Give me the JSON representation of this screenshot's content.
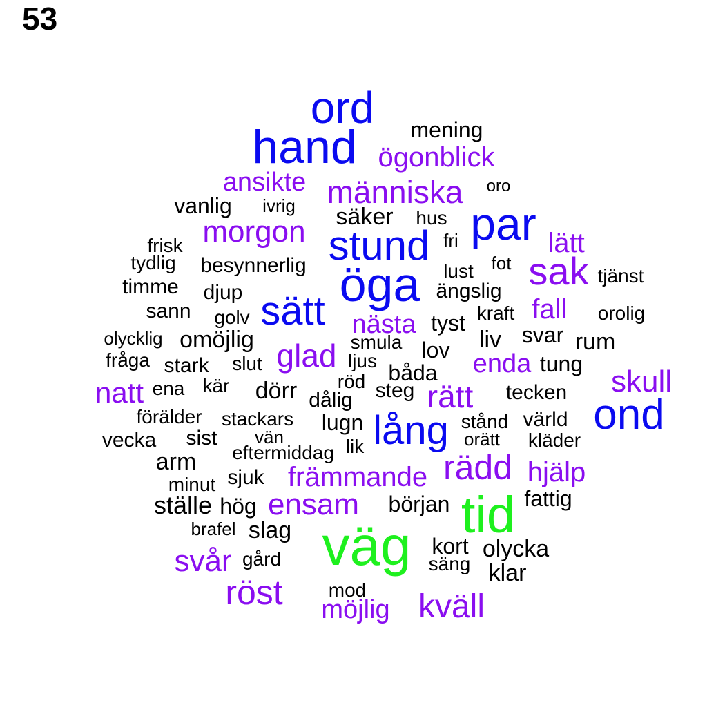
{
  "panel_label": "53",
  "colors": {
    "black": "#000000",
    "purple": "#8a0ef0",
    "blue": "#0a0af0",
    "green": "#1ef01e"
  },
  "words": [
    {
      "text": "ord",
      "color": "blue"
    },
    {
      "text": "hand",
      "color": "blue"
    },
    {
      "text": "mening",
      "color": "black"
    },
    {
      "text": "ögonblick",
      "color": "purple"
    },
    {
      "text": "ansikte",
      "color": "purple"
    },
    {
      "text": "människa",
      "color": "purple"
    },
    {
      "text": "oro",
      "color": "black"
    },
    {
      "text": "vanlig",
      "color": "black"
    },
    {
      "text": "ivrig",
      "color": "black"
    },
    {
      "text": "säker",
      "color": "black"
    },
    {
      "text": "hus",
      "color": "black"
    },
    {
      "text": "par",
      "color": "blue"
    },
    {
      "text": "morgon",
      "color": "purple"
    },
    {
      "text": "stund",
      "color": "blue"
    },
    {
      "text": "lätt",
      "color": "purple"
    },
    {
      "text": "frisk",
      "color": "black"
    },
    {
      "text": "fri",
      "color": "black"
    },
    {
      "text": "tydlig",
      "color": "black"
    },
    {
      "text": "besynnerlig",
      "color": "black"
    },
    {
      "text": "fot",
      "color": "black"
    },
    {
      "text": "sak",
      "color": "purple"
    },
    {
      "text": "lust",
      "color": "black"
    },
    {
      "text": "tjänst",
      "color": "black"
    },
    {
      "text": "öga",
      "color": "blue"
    },
    {
      "text": "timme",
      "color": "black"
    },
    {
      "text": "djup",
      "color": "black"
    },
    {
      "text": "ängslig",
      "color": "black"
    },
    {
      "text": "sätt",
      "color": "blue"
    },
    {
      "text": "fall",
      "color": "purple"
    },
    {
      "text": "sann",
      "color": "black"
    },
    {
      "text": "golv",
      "color": "black"
    },
    {
      "text": "kraft",
      "color": "black"
    },
    {
      "text": "orolig",
      "color": "black"
    },
    {
      "text": "nästa",
      "color": "purple"
    },
    {
      "text": "tyst",
      "color": "black"
    },
    {
      "text": "olycklig",
      "color": "black"
    },
    {
      "text": "omöjlig",
      "color": "black"
    },
    {
      "text": "svar",
      "color": "black"
    },
    {
      "text": "liv",
      "color": "black"
    },
    {
      "text": "rum",
      "color": "black"
    },
    {
      "text": "smula",
      "color": "black"
    },
    {
      "text": "glad",
      "color": "purple"
    },
    {
      "text": "lov",
      "color": "black"
    },
    {
      "text": "fråga",
      "color": "black"
    },
    {
      "text": "stark",
      "color": "black"
    },
    {
      "text": "slut",
      "color": "black"
    },
    {
      "text": "ljus",
      "color": "black"
    },
    {
      "text": "enda",
      "color": "purple"
    },
    {
      "text": "tung",
      "color": "black"
    },
    {
      "text": "båda",
      "color": "black"
    },
    {
      "text": "skull",
      "color": "purple"
    },
    {
      "text": "natt",
      "color": "purple"
    },
    {
      "text": "ena",
      "color": "black"
    },
    {
      "text": "kär",
      "color": "black"
    },
    {
      "text": "dörr",
      "color": "black"
    },
    {
      "text": "röd",
      "color": "black"
    },
    {
      "text": "steg",
      "color": "black"
    },
    {
      "text": "rätt",
      "color": "purple"
    },
    {
      "text": "tecken",
      "color": "black"
    },
    {
      "text": "dålig",
      "color": "black"
    },
    {
      "text": "ond",
      "color": "blue"
    },
    {
      "text": "förälder",
      "color": "black"
    },
    {
      "text": "stackars",
      "color": "black"
    },
    {
      "text": "lugn",
      "color": "black"
    },
    {
      "text": "lång",
      "color": "blue"
    },
    {
      "text": "stånd",
      "color": "black"
    },
    {
      "text": "värld",
      "color": "black"
    },
    {
      "text": "vecka",
      "color": "black"
    },
    {
      "text": "sist",
      "color": "black"
    },
    {
      "text": "vän",
      "color": "black"
    },
    {
      "text": "orätt",
      "color": "black"
    },
    {
      "text": "kläder",
      "color": "black"
    },
    {
      "text": "eftermiddag",
      "color": "black"
    },
    {
      "text": "lik",
      "color": "black"
    },
    {
      "text": "arm",
      "color": "black"
    },
    {
      "text": "rädd",
      "color": "purple"
    },
    {
      "text": "hjälp",
      "color": "purple"
    },
    {
      "text": "främmande",
      "color": "purple"
    },
    {
      "text": "minut",
      "color": "black"
    },
    {
      "text": "sjuk",
      "color": "black"
    },
    {
      "text": "fattig",
      "color": "black"
    },
    {
      "text": "ställe",
      "color": "black"
    },
    {
      "text": "hög",
      "color": "black"
    },
    {
      "text": "ensam",
      "color": "purple"
    },
    {
      "text": "början",
      "color": "black"
    },
    {
      "text": "tid",
      "color": "green"
    },
    {
      "text": "brafel",
      "color": "black"
    },
    {
      "text": "slag",
      "color": "black"
    },
    {
      "text": "väg",
      "color": "green"
    },
    {
      "text": "kort",
      "color": "black"
    },
    {
      "text": "olycka",
      "color": "black"
    },
    {
      "text": "svår",
      "color": "purple"
    },
    {
      "text": "gård",
      "color": "black"
    },
    {
      "text": "säng",
      "color": "black"
    },
    {
      "text": "klar",
      "color": "black"
    },
    {
      "text": "röst",
      "color": "purple"
    },
    {
      "text": "mod",
      "color": "black"
    },
    {
      "text": "möjlig",
      "color": "purple"
    },
    {
      "text": "kväll",
      "color": "purple"
    }
  ]
}
